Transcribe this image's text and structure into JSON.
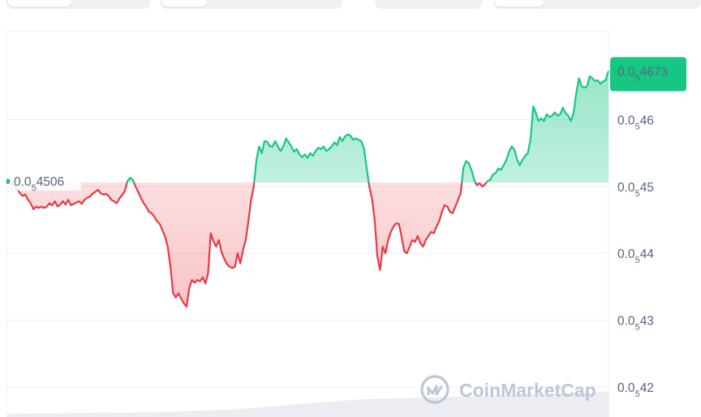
{
  "chart_data": {
    "type": "area",
    "title": "",
    "xlabel": "",
    "ylabel": "",
    "y_axis": {
      "position": "right",
      "ticks": [
        {
          "value": 4.6e-06,
          "label_prefix": "0.0",
          "label_subscript": "5",
          "label_digits": "46"
        },
        {
          "value": 4.5e-06,
          "label_prefix": "0.0",
          "label_subscript": "5",
          "label_digits": "45"
        },
        {
          "value": 4.4e-06,
          "label_prefix": "0.0",
          "label_subscript": "5",
          "label_digits": "44"
        },
        {
          "value": 4.3e-06,
          "label_prefix": "0.0",
          "label_subscript": "5",
          "label_digits": "43"
        },
        {
          "value": 4.2e-06,
          "label_prefix": "0.0",
          "label_subscript": "5",
          "label_digits": "42"
        }
      ],
      "ylim": [
        4.155e-06,
        4.733e-06
      ]
    },
    "grid": true,
    "baseline": {
      "value": 4.506e-06,
      "label_prefix": "0.0",
      "label_subscript": "5",
      "label_digits": "4506"
    },
    "current_price": {
      "value": 4.673e-06,
      "label_prefix": "0.0",
      "label_subscript": "5",
      "label_digits": "4673"
    },
    "colors": {
      "above": "#16c784",
      "below": "#ea3943",
      "above_fill": "#16c784",
      "below_fill": "#ea3943",
      "grid": "#eff2f5",
      "axis_text": "#58667e",
      "badge_bg": "#16c784",
      "badge_text": "#ffffff"
    },
    "series": [
      {
        "values": [
          4.505,
          4.506,
          4.505,
          4.5,
          4.496,
          4.49,
          4.486,
          4.488,
          4.48,
          4.475,
          4.466,
          4.47,
          4.468,
          4.47,
          4.468,
          4.47,
          4.475,
          4.472,
          4.478,
          4.47,
          4.473,
          4.478,
          4.473,
          4.48,
          4.472,
          4.474,
          4.476,
          4.478,
          4.474,
          4.48,
          4.483,
          4.485,
          4.489,
          4.492,
          4.495,
          4.49,
          4.488,
          4.489,
          4.486,
          4.48,
          4.478,
          4.475,
          4.482,
          4.487,
          4.493,
          4.508,
          4.513,
          4.51,
          4.5,
          4.492,
          4.483,
          4.475,
          4.47,
          4.462,
          4.46,
          4.455,
          4.448,
          4.444,
          4.435,
          4.425,
          4.41,
          4.38,
          4.34,
          4.334,
          4.34,
          4.332,
          4.325,
          4.32,
          4.348,
          4.36,
          4.356,
          4.36,
          4.358,
          4.364,
          4.355,
          4.37,
          4.43,
          4.418,
          4.41,
          4.42,
          4.402,
          4.392,
          4.384,
          4.38,
          4.378,
          4.38,
          4.4,
          4.385,
          4.405,
          4.42,
          4.448,
          4.48,
          4.5,
          4.54,
          4.56,
          4.55,
          4.568,
          4.567,
          4.56,
          4.56,
          4.568,
          4.56,
          4.553,
          4.56,
          4.572,
          4.566,
          4.56,
          4.552,
          4.556,
          4.548,
          4.544,
          4.548,
          4.543,
          4.55,
          4.546,
          4.553,
          4.558,
          4.556,
          4.56,
          4.553,
          4.556,
          4.56,
          4.566,
          4.562,
          4.574,
          4.568,
          4.575,
          4.578,
          4.576,
          4.57,
          4.572,
          4.57,
          4.568,
          4.557,
          4.528,
          4.5,
          4.482,
          4.45,
          4.395,
          4.375,
          4.41,
          4.4,
          4.42,
          4.432,
          4.44,
          4.445,
          4.444,
          4.425,
          4.403,
          4.4,
          4.41,
          4.42,
          4.417,
          4.426,
          4.415,
          4.41,
          4.42,
          4.426,
          4.432,
          4.43,
          4.44,
          4.448,
          4.462,
          4.472,
          4.47,
          4.462,
          4.46,
          4.47,
          4.48,
          4.49,
          4.528,
          4.538,
          4.535,
          4.525,
          4.51,
          4.502,
          4.505,
          4.5,
          4.503,
          4.508,
          4.51,
          4.518,
          4.52,
          4.527,
          4.525,
          4.532,
          4.54,
          4.552,
          4.56,
          4.555,
          4.54,
          4.532,
          4.54,
          4.546,
          4.55,
          4.572,
          4.62,
          4.61,
          4.598,
          4.602,
          4.598,
          4.608,
          4.604,
          4.606,
          4.611,
          4.606,
          4.608,
          4.618,
          4.61,
          4.606,
          4.598,
          4.61,
          4.64,
          4.662,
          4.65,
          4.648,
          4.65,
          4.665,
          4.662,
          4.658,
          4.659,
          4.654,
          4.657,
          4.66,
          4.673
        ]
      }
    ],
    "y_scale_note": "values in units of 1e-6"
  },
  "watermark": {
    "text": "CoinMarketCap"
  },
  "tabs": {
    "groups": [
      "",
      "",
      "",
      ""
    ]
  }
}
